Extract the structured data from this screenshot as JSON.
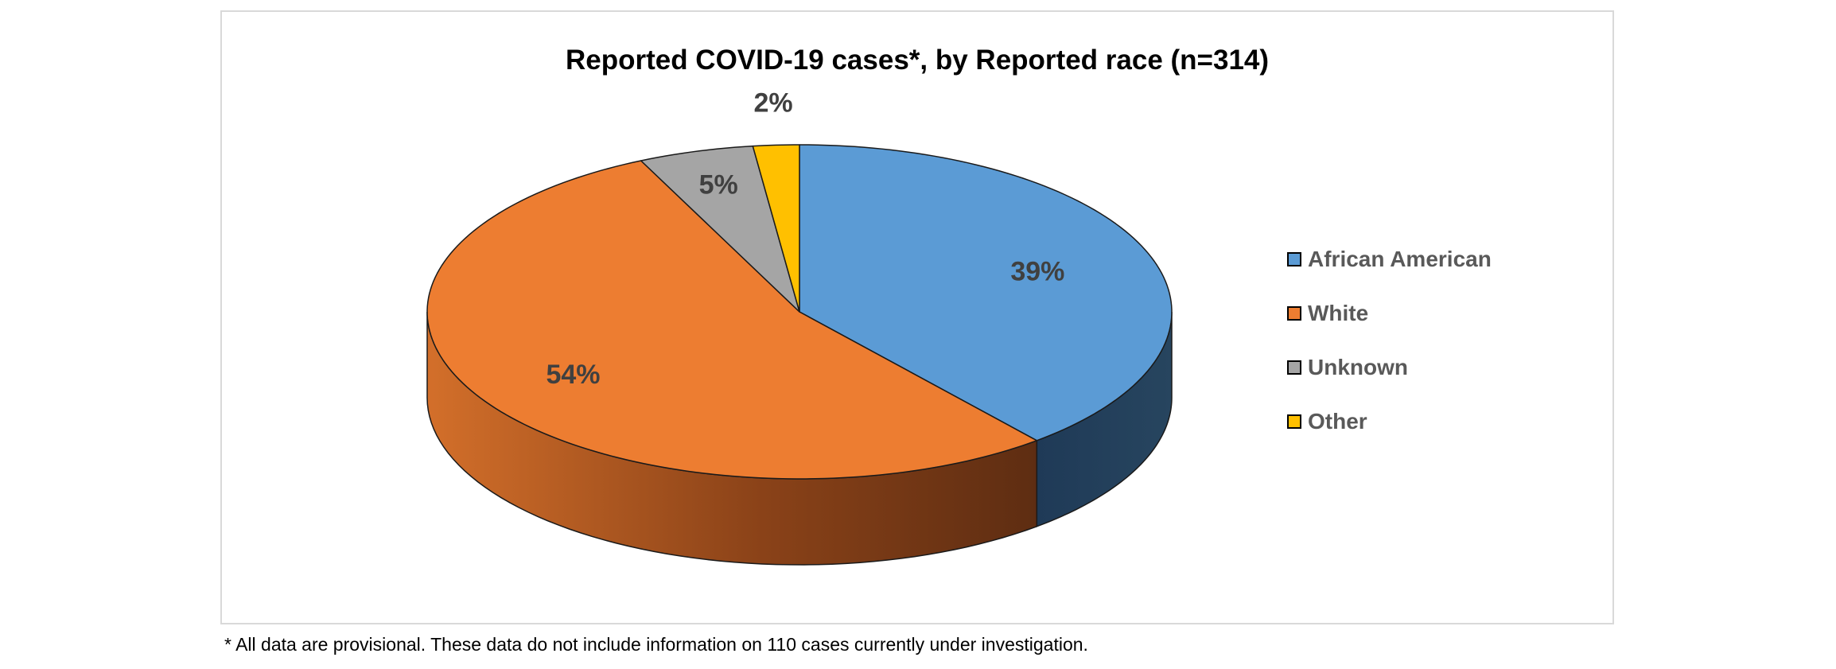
{
  "chart_data": {
    "type": "pie",
    "title": "Reported COVID-19 cases*, by Reported race (n=314)",
    "categories": [
      "African American",
      "White",
      "Unknown",
      "Other"
    ],
    "values": [
      39,
      54,
      5,
      2
    ],
    "labels": [
      "39%",
      "54%",
      "5%",
      "2%"
    ],
    "colors": [
      "#5b9bd5",
      "#ed7d31",
      "#a5a5a5",
      "#ffc000"
    ],
    "side_colors": [
      "#203864",
      "#843c0c",
      "#595959",
      "#7f6000"
    ],
    "legend_position": "right",
    "style": "3d"
  },
  "footnote": "* All data are provisional. These data do not include information on 110 cases currently under investigation."
}
